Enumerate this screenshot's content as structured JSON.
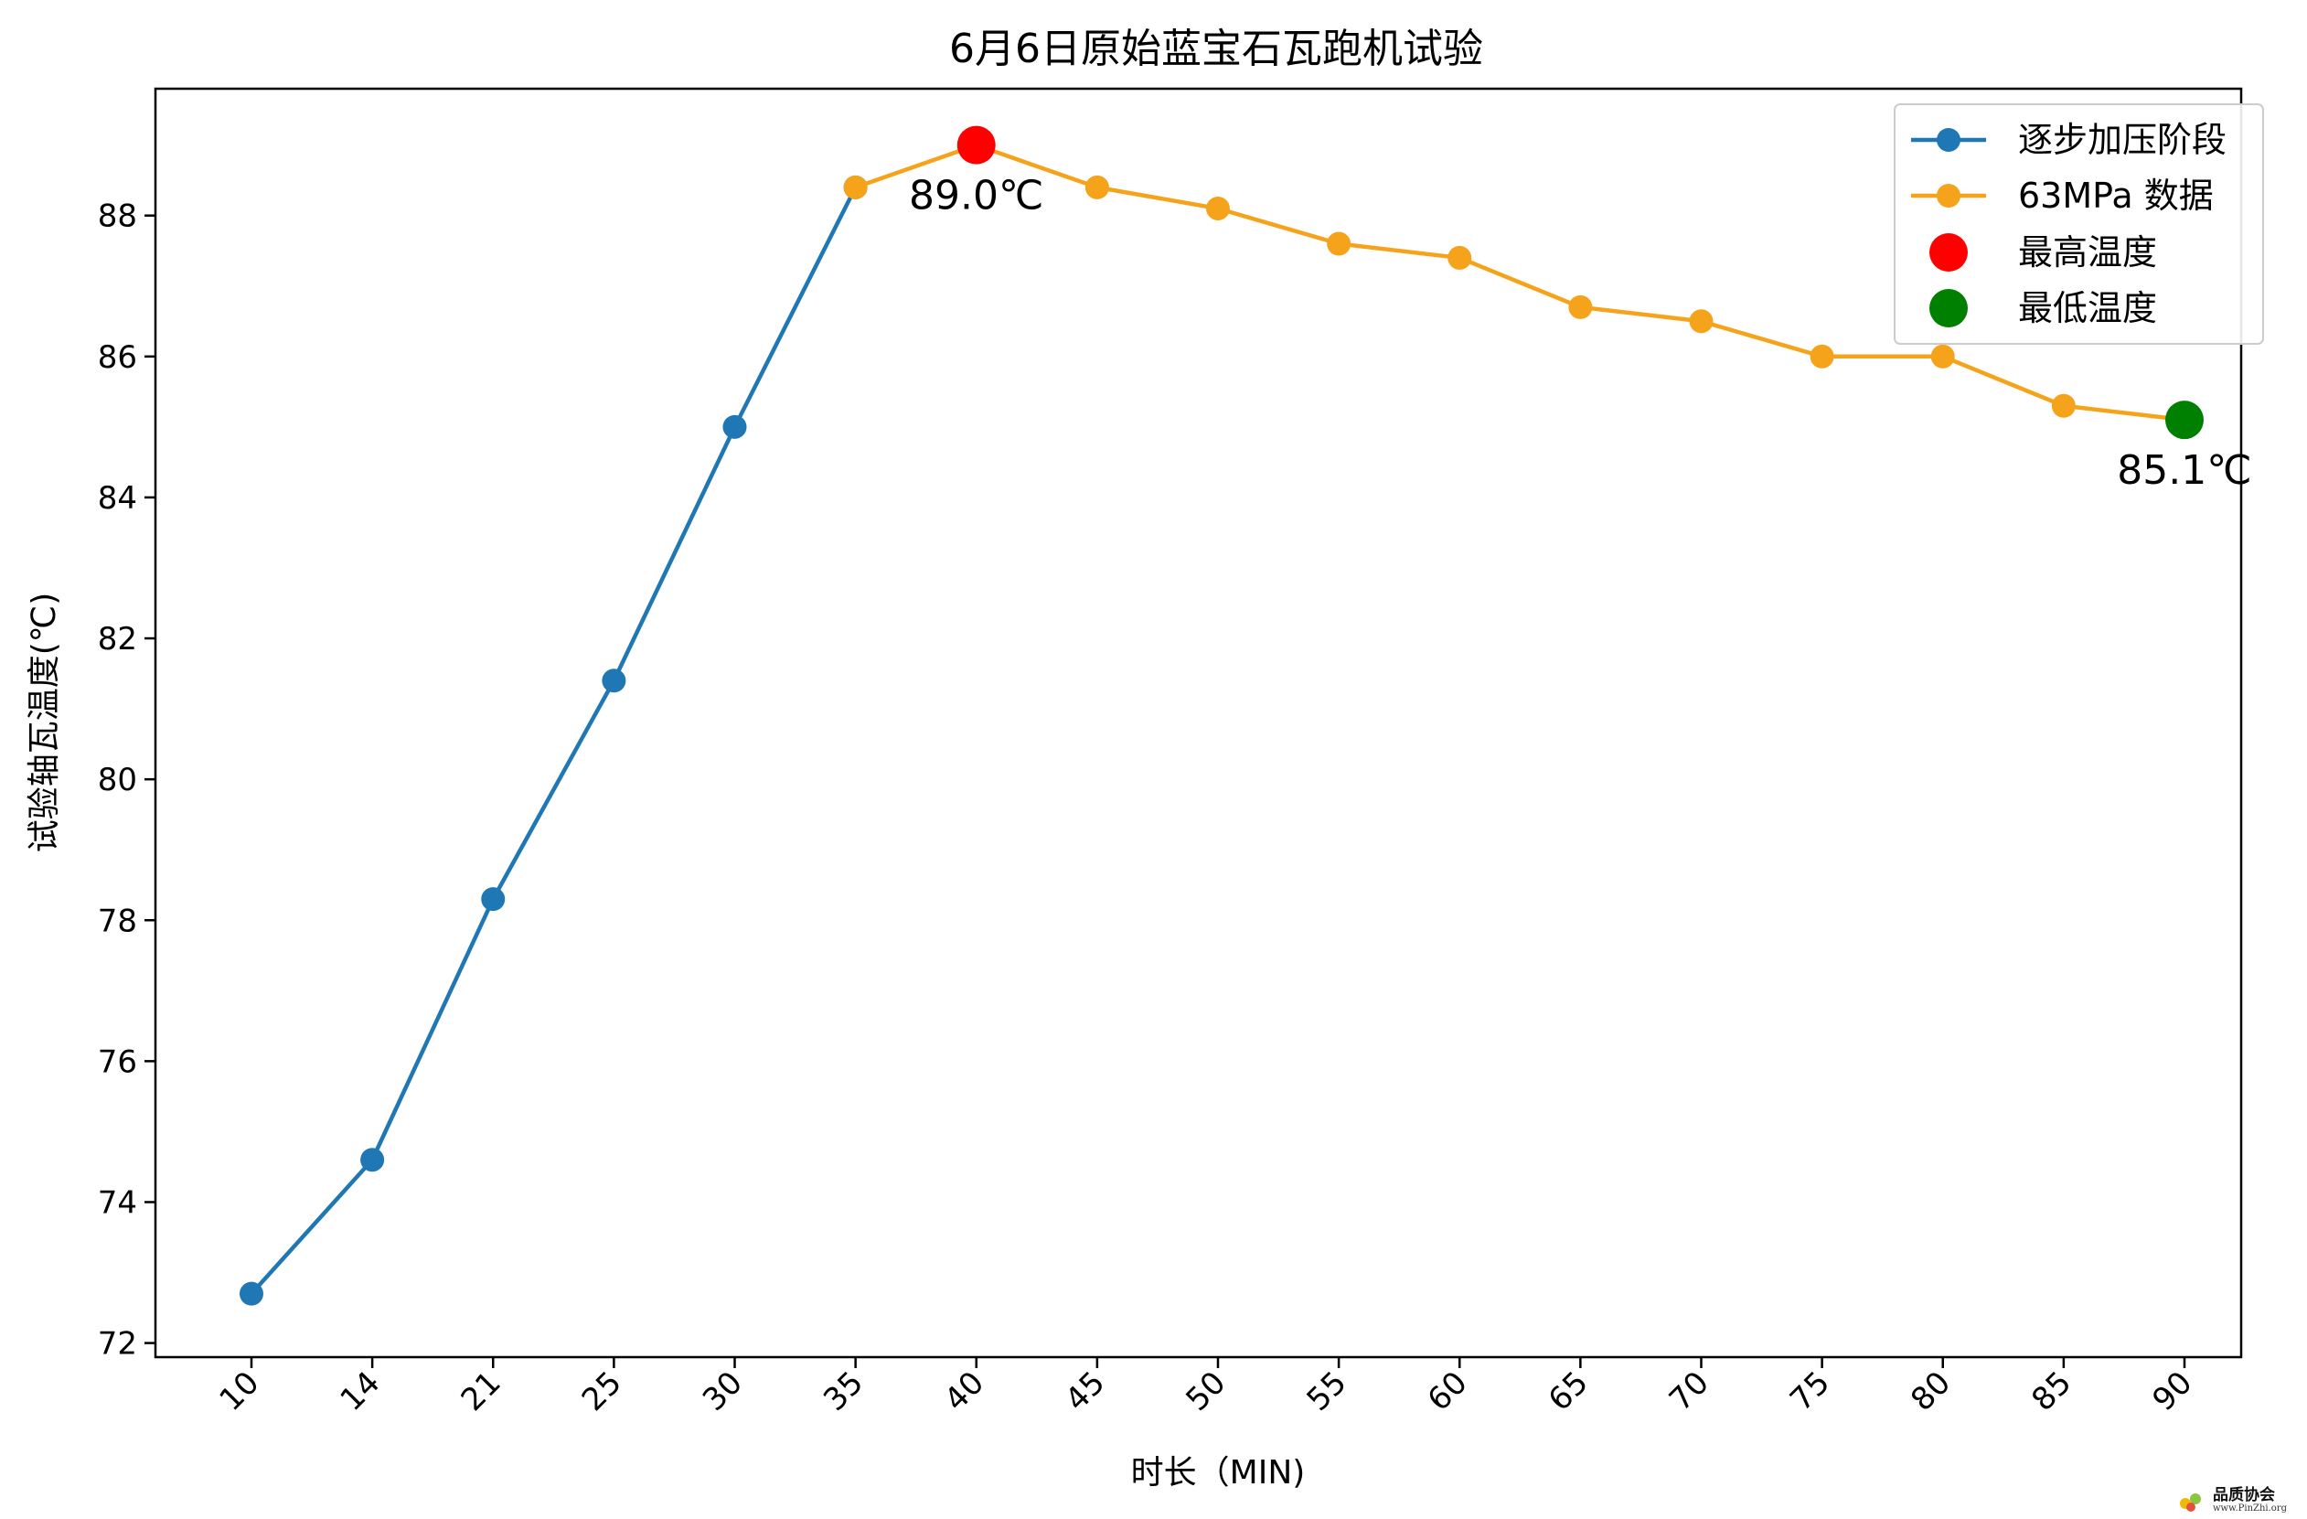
{
  "chart_data": {
    "type": "line",
    "title": "6月6日原始蓝宝石瓦跑机试验",
    "xlabel": "时长（MIN)",
    "ylabel": "试验轴瓦温度(℃)",
    "categories": [
      "10",
      "14",
      "21",
      "25",
      "30",
      "35",
      "40",
      "45",
      "50",
      "55",
      "60",
      "65",
      "70",
      "75",
      "80",
      "85",
      "90"
    ],
    "ylim": [
      71.8,
      89.8
    ],
    "yticks": [
      72,
      74,
      76,
      78,
      80,
      82,
      84,
      86,
      88
    ],
    "grid": false,
    "legend_position": "top-right",
    "series": [
      {
        "name": "逐步加压阶段",
        "color": "#1f77b4",
        "x": [
          "10",
          "14",
          "21",
          "25",
          "30",
          "35"
        ],
        "values": [
          72.7,
          74.6,
          78.3,
          81.4,
          85.0,
          88.4
        ]
      },
      {
        "name": "63MPa 数据",
        "color": "#f5a31a",
        "x": [
          "35",
          "40",
          "45",
          "50",
          "55",
          "60",
          "65",
          "70",
          "75",
          "80",
          "85",
          "90"
        ],
        "values": [
          88.4,
          89.0,
          88.4,
          88.1,
          87.6,
          87.4,
          86.7,
          86.5,
          86.0,
          86.0,
          85.3,
          85.1
        ]
      }
    ],
    "highlights": [
      {
        "name": "最高温度",
        "x": "40",
        "value": 89.0,
        "color": "#ff0000",
        "label": "89.0℃"
      },
      {
        "name": "最低温度",
        "x": "90",
        "value": 85.1,
        "color": "#008000",
        "label": "85.1℃"
      }
    ]
  },
  "watermark": {
    "name": "品质协会",
    "url": "www.PinZhi.org"
  }
}
